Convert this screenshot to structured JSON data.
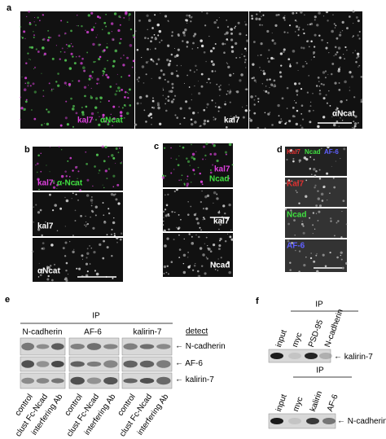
{
  "panel_a": {
    "letter": "a",
    "merge_labels": [
      "kal7",
      "αNcat"
    ],
    "label_2": "kal7",
    "label_3": "αNcat"
  },
  "panel_b": {
    "letter": "b",
    "merge_labels": [
      "kal7",
      "α-Ncat"
    ],
    "label_2": "kal7",
    "label_3": "αNcat"
  },
  "panel_c": {
    "letter": "c",
    "merge_labels": [
      "kal7",
      "Ncad"
    ],
    "label_2": "kal7",
    "label_3": "Ncad"
  },
  "panel_d": {
    "letter": "d",
    "merge_labels": [
      "Kal7",
      "Ncad",
      "AF-6"
    ],
    "label_2": "Kal7",
    "label_3": "Ncad",
    "label_4": "AF-6"
  },
  "panel_e": {
    "letter": "e",
    "ip": "IP",
    "groups": [
      "N-cadherin",
      "AF-6",
      "kalirin-7"
    ],
    "detect": "detect",
    "rows": [
      "N-cadherin",
      "AF-6",
      "kalirin-7"
    ],
    "lanes": [
      "control",
      "clust Fc-Ncad",
      "interfering Ab"
    ]
  },
  "panel_f": {
    "letter": "f",
    "top": {
      "ip": "IP",
      "lanes": [
        "input",
        "myc",
        "PSD-95",
        "N-cadherin"
      ],
      "detect": "kalirin-7"
    },
    "bottom": {
      "ip": "IP",
      "lanes": [
        "input",
        "myc",
        "kalirin",
        "AF-6"
      ],
      "detect": "N-cadherin"
    }
  }
}
